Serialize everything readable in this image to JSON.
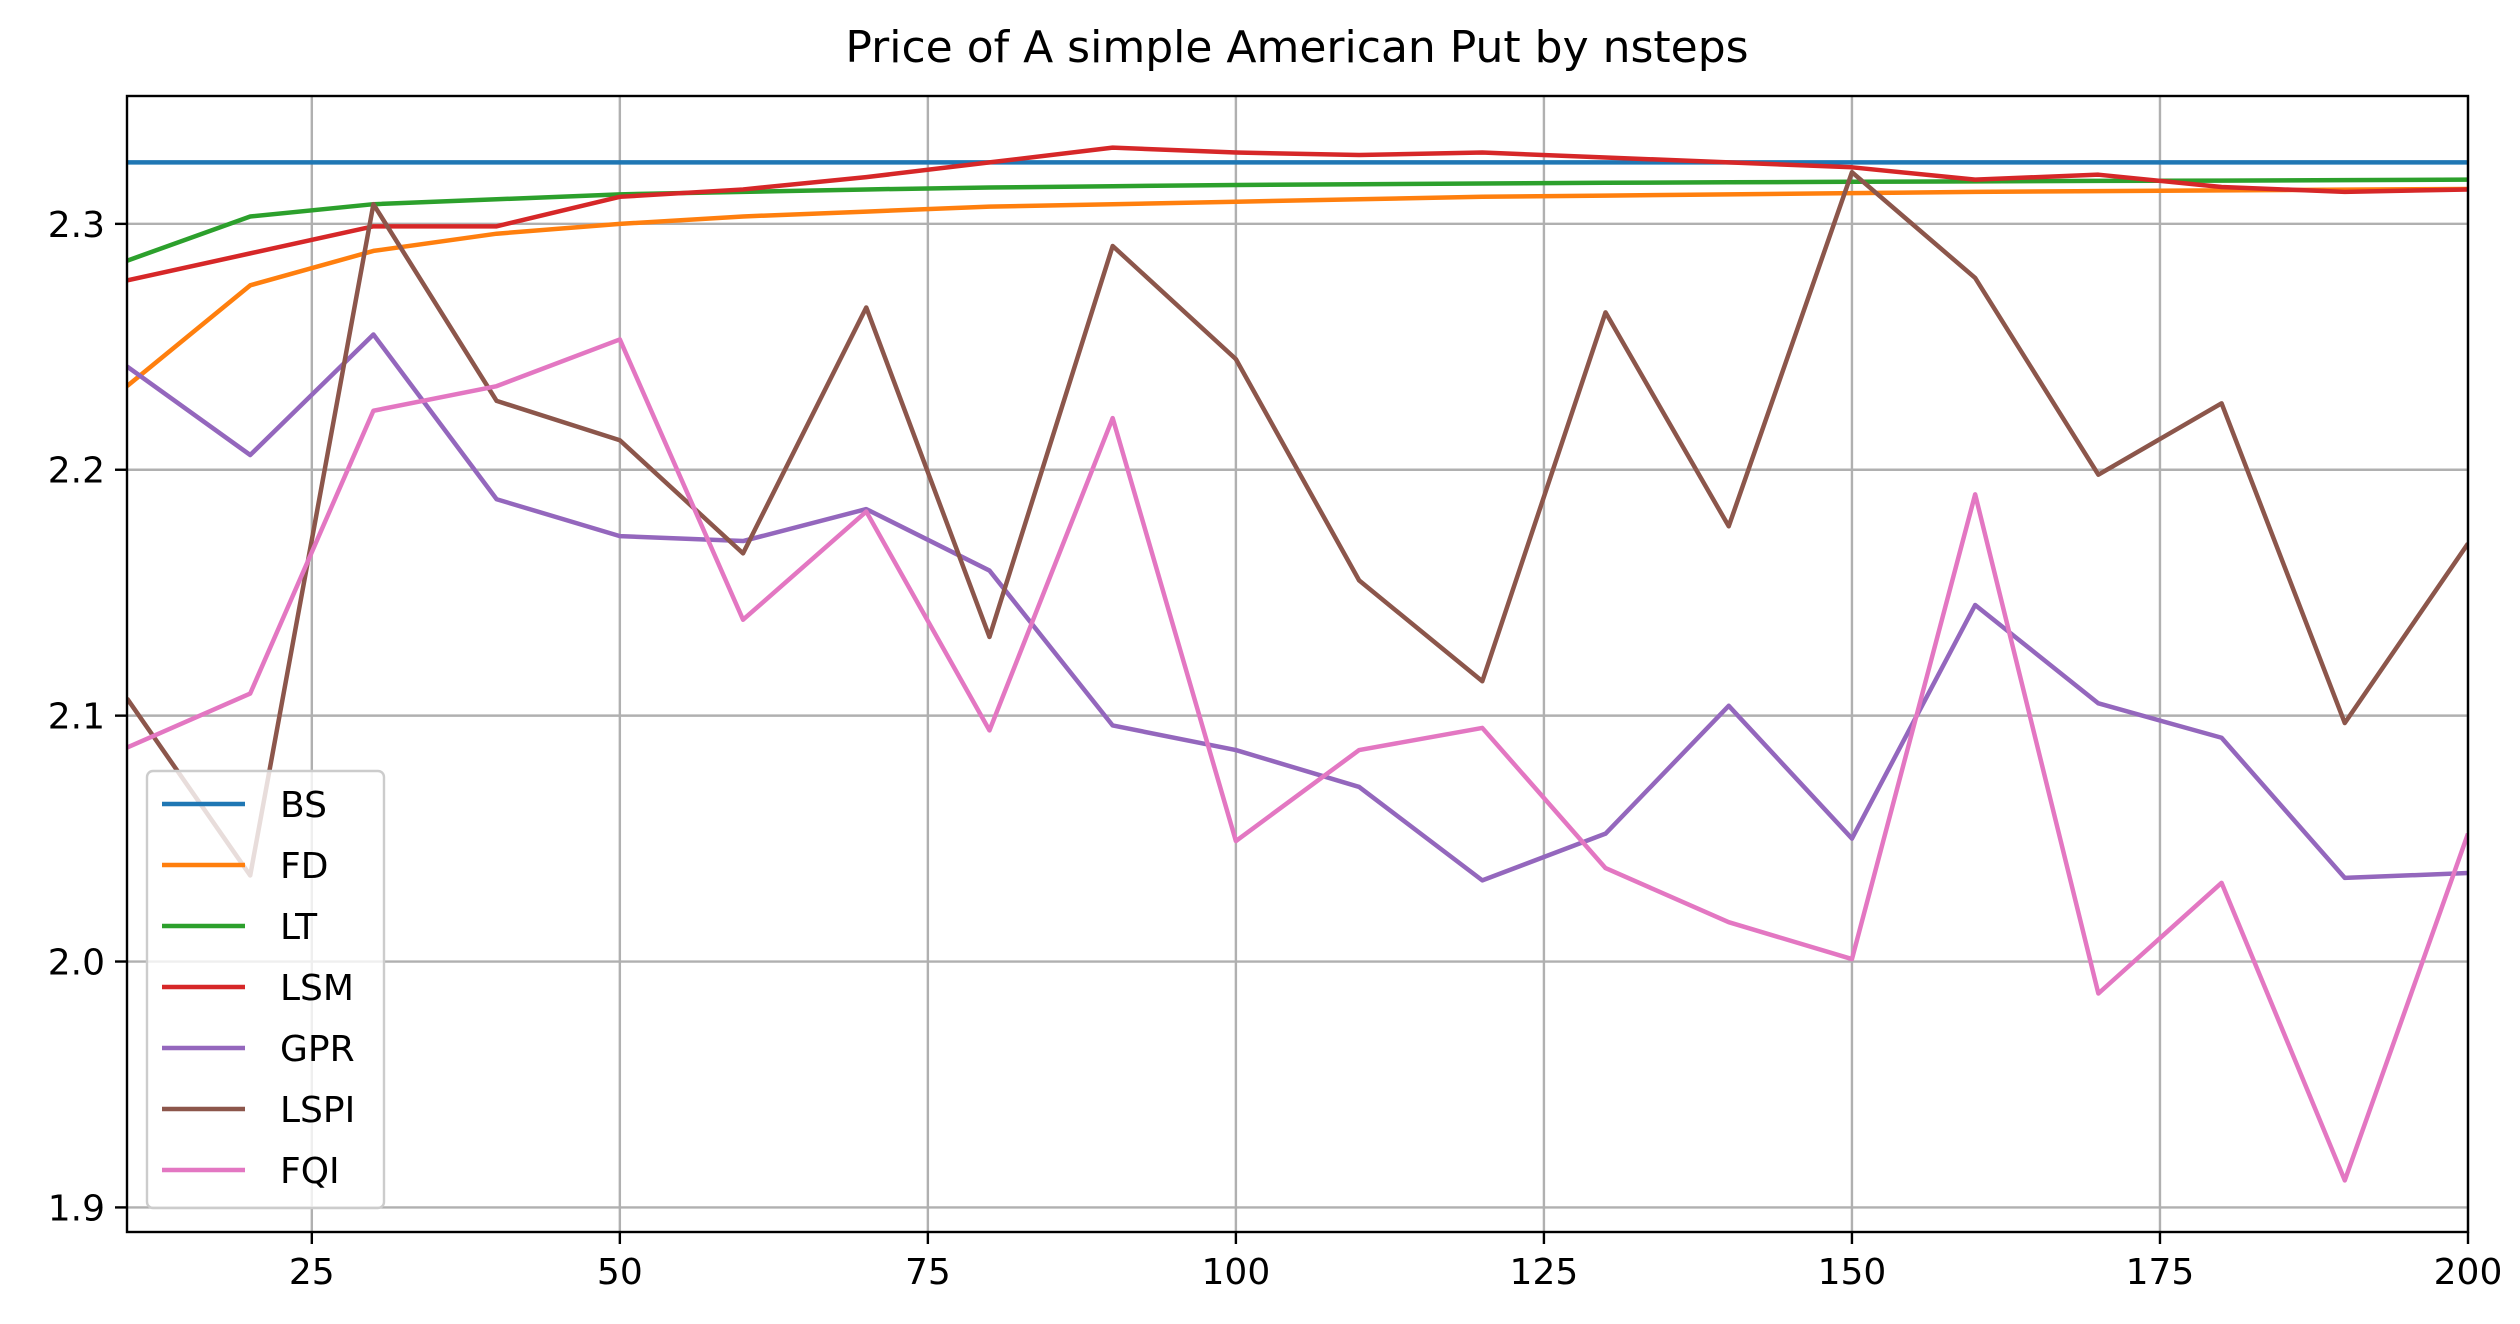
{
  "chart_data": {
    "type": "line",
    "title": "Price of A simple American Put by nsteps",
    "xlabel": "",
    "ylabel": "",
    "xlim": [
      10,
      200
    ],
    "ylim": [
      1.89,
      2.352
    ],
    "xticks": [
      25,
      50,
      75,
      100,
      125,
      150,
      175,
      200
    ],
    "xtick_labels": [
      "25",
      "50",
      "75",
      "100",
      "125",
      "150",
      "175",
      "200"
    ],
    "yticks": [
      1.9,
      2.0,
      2.1,
      2.2,
      2.3
    ],
    "ytick_labels": [
      "1.9",
      "2.0",
      "2.1",
      "2.2",
      "2.3"
    ],
    "grid": true,
    "legend_position": "lower-left",
    "x": [
      10,
      20,
      30,
      40,
      50,
      60,
      70,
      80,
      90,
      100,
      110,
      120,
      130,
      140,
      150,
      160,
      170,
      180,
      190,
      200
    ],
    "series": [
      {
        "name": "BS",
        "color": "#1f77b4",
        "values": [
          2.325,
          2.325,
          2.325,
          2.325,
          2.325,
          2.325,
          2.325,
          2.325,
          2.325,
          2.325,
          2.325,
          2.325,
          2.325,
          2.325,
          2.325,
          2.325,
          2.325,
          2.325,
          2.325,
          2.325
        ]
      },
      {
        "name": "FD",
        "color": "#ff7f0e",
        "values": [
          2.234,
          2.275,
          2.289,
          2.296,
          2.3,
          2.303,
          2.305,
          2.307,
          2.308,
          2.309,
          2.31,
          2.311,
          2.3115,
          2.312,
          2.3125,
          2.313,
          2.3133,
          2.3136,
          2.3139,
          2.3142
        ]
      },
      {
        "name": "LT",
        "color": "#2ca02c",
        "values": [
          2.285,
          2.303,
          2.308,
          2.31,
          2.312,
          2.313,
          2.314,
          2.3148,
          2.3153,
          2.3158,
          2.3161,
          2.3164,
          2.3167,
          2.3169,
          2.3171,
          2.3173,
          2.3175,
          2.3176,
          2.3178,
          2.318
        ]
      },
      {
        "name": "LSM",
        "color": "#d62728",
        "values": [
          2.277,
          2.288,
          2.299,
          2.299,
          2.311,
          2.314,
          2.319,
          2.325,
          2.331,
          2.329,
          2.328,
          2.329,
          2.327,
          2.325,
          2.323,
          2.318,
          2.32,
          2.315,
          2.313,
          2.314
        ]
      },
      {
        "name": "GPR",
        "color": "#9467bd",
        "values": [
          2.242,
          2.206,
          2.255,
          2.188,
          2.173,
          2.171,
          2.184,
          2.159,
          2.096,
          2.086,
          2.071,
          2.033,
          2.052,
          2.104,
          2.05,
          2.145,
          2.105,
          2.091,
          2.034,
          2.036
        ]
      },
      {
        "name": "LSPI",
        "color": "#8c564b",
        "values": [
          2.107,
          2.035,
          2.308,
          2.228,
          2.212,
          2.166,
          2.266,
          2.132,
          2.291,
          2.245,
          2.155,
          2.114,
          2.264,
          2.177,
          2.321,
          2.278,
          2.198,
          2.227,
          2.097,
          2.17
        ]
      },
      {
        "name": "FQI",
        "color": "#e377c2",
        "values": [
          2.087,
          2.109,
          2.224,
          2.234,
          2.253,
          2.139,
          2.183,
          2.094,
          2.221,
          2.049,
          2.086,
          2.095,
          2.038,
          2.016,
          2.001,
          2.19,
          1.987,
          2.032,
          1.911,
          2.052
        ]
      }
    ]
  }
}
